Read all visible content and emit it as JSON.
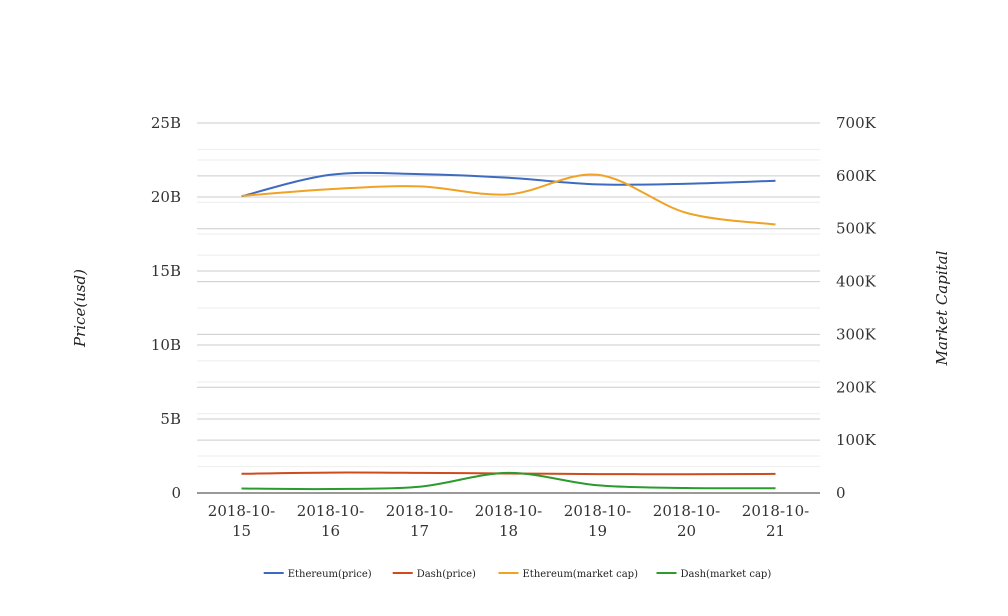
{
  "chart_data": {
    "type": "line",
    "categories": [
      "2018-10-15",
      "2018-10-16",
      "2018-10-17",
      "2018-10-18",
      "2018-10-19",
      "2018-10-20",
      "2018-10-21"
    ],
    "category_lines": [
      [
        "2018-10-",
        "15"
      ],
      [
        "2018-10-",
        "16"
      ],
      [
        "2018-10-",
        "17"
      ],
      [
        "2018-10-",
        "18"
      ],
      [
        "2018-10-",
        "19"
      ],
      [
        "2018-10-",
        "20"
      ],
      [
        "2018-10-",
        "21"
      ]
    ],
    "y_left": {
      "label": "Price(usd)",
      "range": [
        0,
        25000000000
      ],
      "ticks": [
        0,
        5000000000,
        10000000000,
        15000000000,
        20000000000,
        25000000000
      ],
      "tick_labels": [
        "0",
        "5B",
        "10B",
        "15B",
        "20B",
        "25B"
      ]
    },
    "y_right": {
      "label": "Market Capital",
      "range": [
        0,
        700000
      ],
      "ticks": [
        0,
        100000,
        200000,
        300000,
        400000,
        500000,
        600000,
        700000
      ],
      "tick_labels": [
        "0",
        "100K",
        "200K",
        "300K",
        "400K",
        "500K",
        "600K",
        "700K"
      ]
    },
    "grid": true,
    "legend_position": "bottom",
    "series": [
      {
        "name": "Ethereum(price)",
        "axis": "left",
        "color": "#3e6bbf",
        "values": [
          20050000000,
          21500000000,
          21550000000,
          21300000000,
          20850000000,
          20900000000,
          21100000000
        ]
      },
      {
        "name": "Dash(price)",
        "axis": "left",
        "color": "#cf4a1c",
        "values": [
          1300000000,
          1380000000,
          1360000000,
          1320000000,
          1280000000,
          1270000000,
          1290000000
        ]
      },
      {
        "name": "Ethereum(market cap)",
        "axis": "right",
        "color": "#f0a225",
        "values": [
          562000,
          575000,
          580000,
          565000,
          602000,
          530000,
          508000
        ]
      },
      {
        "name": "Dash(market cap)",
        "axis": "right",
        "color": "#2c9a2c",
        "values": [
          8500,
          7500,
          12000,
          38000,
          14500,
          9500,
          9000
        ]
      }
    ]
  }
}
